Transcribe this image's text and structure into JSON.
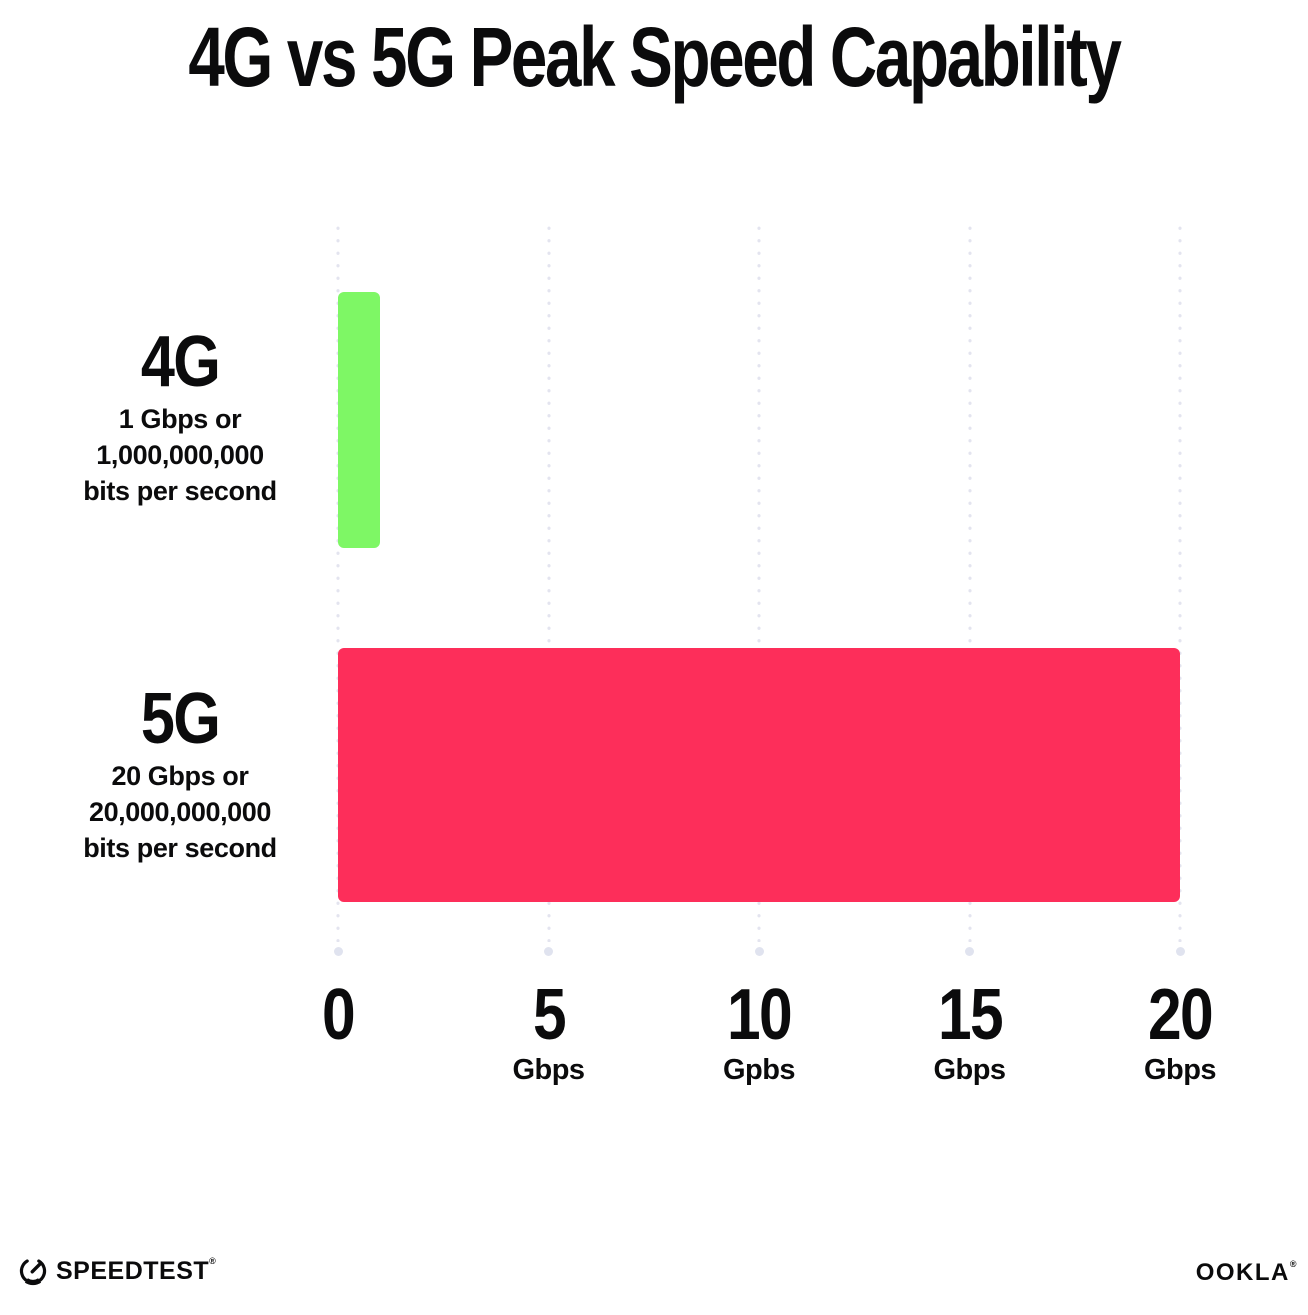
{
  "chart_data": {
    "type": "bar",
    "orientation": "horizontal",
    "title": "4G vs 5G Peak Speed Capability",
    "categories": [
      "4G",
      "5G"
    ],
    "values": [
      1,
      20
    ],
    "unit": "Gbps",
    "xlim": [
      0,
      20
    ],
    "grid": "vertical dotted gridlines at each tick",
    "legend_position": "none",
    "bars": [
      {
        "label": "4G",
        "value_gbps": 1,
        "color": "#7EF765",
        "description_lines": [
          "1 Gbps or",
          "1,000,000,000",
          "bits per second"
        ]
      },
      {
        "label": "5G",
        "value_gbps": 20,
        "color": "#FD2E5A",
        "description_lines": [
          "20 Gbps or",
          "20,000,000,000",
          "bits per second"
        ]
      }
    ],
    "x_ticks": [
      {
        "value": 0,
        "label": "0",
        "unit": ""
      },
      {
        "value": 5,
        "label": "5",
        "unit": "Gbps"
      },
      {
        "value": 10,
        "label": "10",
        "unit": "Gpbs"
      },
      {
        "value": 15,
        "label": "15",
        "unit": "Gbps"
      },
      {
        "value": 20,
        "label": "20",
        "unit": "Gbps"
      }
    ]
  },
  "footer": {
    "speedtest_label": "SPEEDTEST",
    "speedtest_trademark": "®",
    "ookla_label": "OOKLA",
    "ookla_trademark": "®"
  },
  "colors": {
    "background": "#ffffff",
    "text": "#0b0b0c",
    "bar_4g": "#7EF765",
    "bar_5g": "#FD2E5A",
    "gridline_dot": "#e3e4ef",
    "axis_dot": "#e0e3ef"
  }
}
